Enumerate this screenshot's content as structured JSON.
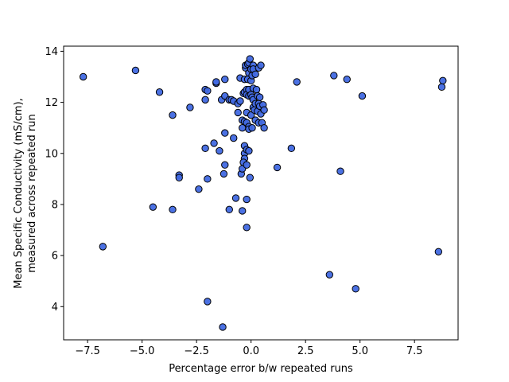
{
  "chart_data": {
    "type": "scatter",
    "title": "",
    "xlabel": "Percentage error b/w repeated runs",
    "ylabel_lines": [
      "Mean Specific Conductivity (mS/cm),",
      "measured across repeated run"
    ],
    "xlim": [
      -8.6,
      9.5
    ],
    "ylim": [
      2.7,
      14.2
    ],
    "xticks": [
      -7.5,
      -5.0,
      -2.5,
      0.0,
      2.5,
      5.0,
      7.5
    ],
    "xtick_labels": [
      "−7.5",
      "−5.0",
      "−2.5",
      "0.0",
      "2.5",
      "5.0",
      "7.5"
    ],
    "yticks": [
      4,
      6,
      8,
      10,
      12,
      14
    ],
    "ytick_labels": [
      "4",
      "6",
      "8",
      "10",
      "12",
      "14"
    ],
    "marker_color": "#4169e1",
    "marker_edge": "#000000",
    "grid": false,
    "points": [
      [
        -7.7,
        13.0
      ],
      [
        -6.8,
        6.35
      ],
      [
        -5.3,
        13.25
      ],
      [
        -4.5,
        7.9
      ],
      [
        -4.2,
        12.4
      ],
      [
        -3.6,
        11.5
      ],
      [
        -3.6,
        7.8
      ],
      [
        -3.3,
        9.15
      ],
      [
        -3.3,
        9.05
      ],
      [
        -2.8,
        11.8
      ],
      [
        -2.4,
        8.6
      ],
      [
        -2.1,
        12.5
      ],
      [
        -2.1,
        12.1
      ],
      [
        -2.1,
        10.2
      ],
      [
        -2.0,
        12.45
      ],
      [
        -2.0,
        9.0
      ],
      [
        -2.0,
        4.2
      ],
      [
        -1.7,
        10.4
      ],
      [
        -1.6,
        12.75
      ],
      [
        -1.6,
        12.8
      ],
      [
        -1.45,
        10.1
      ],
      [
        -1.35,
        12.1
      ],
      [
        -1.3,
        3.2
      ],
      [
        -1.2,
        12.9
      ],
      [
        -1.2,
        12.25
      ],
      [
        -1.2,
        10.8
      ],
      [
        -1.2,
        9.55
      ],
      [
        -1.25,
        9.2
      ],
      [
        -1.0,
        12.1
      ],
      [
        -1.0,
        7.8
      ],
      [
        -0.9,
        12.1
      ],
      [
        -0.8,
        12.05
      ],
      [
        -0.8,
        10.6
      ],
      [
        -0.7,
        8.25
      ],
      [
        -0.6,
        11.6
      ],
      [
        -0.6,
        11.95
      ],
      [
        -0.5,
        12.05
      ],
      [
        -0.5,
        12.95
      ],
      [
        -0.45,
        9.2
      ],
      [
        -0.4,
        9.4
      ],
      [
        -0.4,
        11.0
      ],
      [
        -0.4,
        11.3
      ],
      [
        -0.4,
        7.75
      ],
      [
        -0.35,
        12.35
      ],
      [
        -0.3,
        12.4
      ],
      [
        -0.3,
        12.9
      ],
      [
        -0.3,
        11.25
      ],
      [
        -0.3,
        10.3
      ],
      [
        -0.3,
        10.0
      ],
      [
        -0.3,
        9.8
      ],
      [
        -0.35,
        9.65
      ],
      [
        -0.25,
        13.35
      ],
      [
        -0.25,
        13.45
      ],
      [
        -0.2,
        12.5
      ],
      [
        -0.2,
        12.3
      ],
      [
        -0.2,
        11.6
      ],
      [
        -0.2,
        11.2
      ],
      [
        -0.2,
        10.15
      ],
      [
        -0.2,
        9.55
      ],
      [
        -0.2,
        8.2
      ],
      [
        -0.2,
        7.1
      ],
      [
        -0.15,
        12.9
      ],
      [
        -0.15,
        13.5
      ],
      [
        -0.1,
        13.55
      ],
      [
        -0.1,
        13.15
      ],
      [
        -0.1,
        12.5
      ],
      [
        -0.1,
        12.25
      ],
      [
        -0.1,
        11.05
      ],
      [
        -0.1,
        10.95
      ],
      [
        -0.1,
        10.1
      ],
      [
        -0.05,
        9.05
      ],
      [
        -0.05,
        13.7
      ],
      [
        0.0,
        13.3
      ],
      [
        0.0,
        12.85
      ],
      [
        0.0,
        12.3
      ],
      [
        0.0,
        11.5
      ],
      [
        0.05,
        13.05
      ],
      [
        0.05,
        12.2
      ],
      [
        0.05,
        11.0
      ],
      [
        0.1,
        13.45
      ],
      [
        0.1,
        13.3
      ],
      [
        0.1,
        12.55
      ],
      [
        0.1,
        12.1
      ],
      [
        0.1,
        11.8
      ],
      [
        0.15,
        11.7
      ],
      [
        0.2,
        11.95
      ],
      [
        0.2,
        11.3
      ],
      [
        0.2,
        13.1
      ],
      [
        0.25,
        12.5
      ],
      [
        0.3,
        11.65
      ],
      [
        0.3,
        12.25
      ],
      [
        0.35,
        13.35
      ],
      [
        0.35,
        11.95
      ],
      [
        0.35,
        11.2
      ],
      [
        0.4,
        12.2
      ],
      [
        0.4,
        11.85
      ],
      [
        0.45,
        11.55
      ],
      [
        0.45,
        13.45
      ],
      [
        0.5,
        11.2
      ],
      [
        0.55,
        11.9
      ],
      [
        0.6,
        11.7
      ],
      [
        0.6,
        11.0
      ],
      [
        1.2,
        9.45
      ],
      [
        1.85,
        10.2
      ],
      [
        2.1,
        12.8
      ],
      [
        3.6,
        5.25
      ],
      [
        3.8,
        13.05
      ],
      [
        4.1,
        9.3
      ],
      [
        4.4,
        12.9
      ],
      [
        4.8,
        4.7
      ],
      [
        5.1,
        12.25
      ],
      [
        8.6,
        6.15
      ],
      [
        8.75,
        12.6
      ],
      [
        8.8,
        12.85
      ]
    ]
  }
}
